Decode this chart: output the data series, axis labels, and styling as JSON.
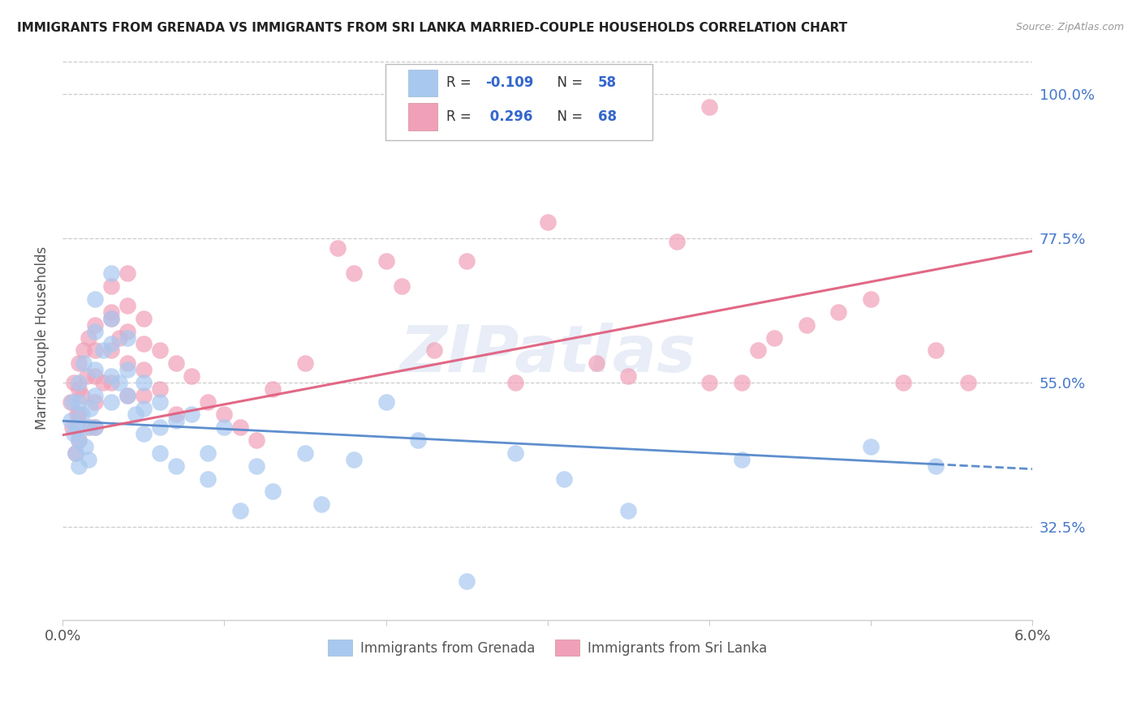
{
  "title": "IMMIGRANTS FROM GRENADA VS IMMIGRANTS FROM SRI LANKA MARRIED-COUPLE HOUSEHOLDS CORRELATION CHART",
  "source": "Source: ZipAtlas.com",
  "ylabel": "Married-couple Households",
  "ytick_labels": [
    "100.0%",
    "77.5%",
    "55.0%",
    "32.5%"
  ],
  "ytick_values": [
    1.0,
    0.775,
    0.55,
    0.325
  ],
  "xmin": 0.0,
  "xmax": 0.06,
  "ymin": 0.18,
  "ymax": 1.06,
  "r_grenada": -0.109,
  "n_grenada": 58,
  "r_srilanka": 0.296,
  "n_srilanka": 68,
  "color_blue": "#a8c8f0",
  "color_pink": "#f0a0b8",
  "trendline_blue_color": "#5588cc",
  "trendline_pink_color": "#e06080",
  "watermark": "ZIPatlas",
  "grenada_x": [
    0.0005,
    0.0006,
    0.0007,
    0.0008,
    0.0009,
    0.001,
    0.001,
    0.001,
    0.001,
    0.0012,
    0.0013,
    0.0014,
    0.0015,
    0.0016,
    0.0017,
    0.002,
    0.002,
    0.002,
    0.002,
    0.002,
    0.0025,
    0.003,
    0.003,
    0.003,
    0.003,
    0.003,
    0.0035,
    0.004,
    0.004,
    0.004,
    0.0045,
    0.005,
    0.005,
    0.005,
    0.006,
    0.006,
    0.006,
    0.007,
    0.007,
    0.008,
    0.009,
    0.009,
    0.01,
    0.011,
    0.012,
    0.013,
    0.015,
    0.016,
    0.018,
    0.02,
    0.022,
    0.025,
    0.028,
    0.031,
    0.035,
    0.042,
    0.05,
    0.054
  ],
  "grenada_y": [
    0.49,
    0.52,
    0.47,
    0.44,
    0.48,
    0.55,
    0.52,
    0.46,
    0.42,
    0.5,
    0.58,
    0.45,
    0.48,
    0.43,
    0.51,
    0.68,
    0.63,
    0.57,
    0.53,
    0.48,
    0.6,
    0.72,
    0.65,
    0.61,
    0.56,
    0.52,
    0.55,
    0.62,
    0.57,
    0.53,
    0.5,
    0.55,
    0.51,
    0.47,
    0.52,
    0.48,
    0.44,
    0.49,
    0.42,
    0.5,
    0.44,
    0.4,
    0.48,
    0.35,
    0.42,
    0.38,
    0.44,
    0.36,
    0.43,
    0.52,
    0.46,
    0.24,
    0.44,
    0.4,
    0.35,
    0.43,
    0.45,
    0.42
  ],
  "srilanka_x": [
    0.0005,
    0.0006,
    0.0007,
    0.0008,
    0.0009,
    0.001,
    0.001,
    0.001,
    0.001,
    0.0012,
    0.0013,
    0.0015,
    0.0016,
    0.0017,
    0.002,
    0.002,
    0.002,
    0.002,
    0.002,
    0.0025,
    0.003,
    0.003,
    0.003,
    0.003,
    0.003,
    0.0035,
    0.004,
    0.004,
    0.004,
    0.004,
    0.004,
    0.005,
    0.005,
    0.005,
    0.005,
    0.006,
    0.006,
    0.007,
    0.007,
    0.008,
    0.009,
    0.01,
    0.011,
    0.012,
    0.013,
    0.015,
    0.017,
    0.018,
    0.02,
    0.021,
    0.023,
    0.025,
    0.028,
    0.03,
    0.033,
    0.035,
    0.038,
    0.04,
    0.04,
    0.042,
    0.043,
    0.044,
    0.046,
    0.048,
    0.05,
    0.052,
    0.054,
    0.056
  ],
  "srilanka_y": [
    0.52,
    0.48,
    0.55,
    0.44,
    0.5,
    0.58,
    0.54,
    0.5,
    0.46,
    0.53,
    0.6,
    0.56,
    0.62,
    0.48,
    0.64,
    0.6,
    0.56,
    0.52,
    0.48,
    0.55,
    0.66,
    0.7,
    0.65,
    0.6,
    0.55,
    0.62,
    0.72,
    0.67,
    0.63,
    0.58,
    0.53,
    0.65,
    0.61,
    0.57,
    0.53,
    0.6,
    0.54,
    0.58,
    0.5,
    0.56,
    0.52,
    0.5,
    0.48,
    0.46,
    0.54,
    0.58,
    0.76,
    0.72,
    0.74,
    0.7,
    0.6,
    0.74,
    0.55,
    0.8,
    0.58,
    0.56,
    0.77,
    0.55,
    0.98,
    0.55,
    0.6,
    0.62,
    0.64,
    0.66,
    0.68,
    0.55,
    0.6,
    0.55
  ],
  "trend_blue_x0": 0.0,
  "trend_blue_y0": 0.49,
  "trend_blue_x1": 0.06,
  "trend_blue_y1": 0.415,
  "trend_pink_x0": 0.0,
  "trend_pink_y0": 0.468,
  "trend_pink_x1": 0.06,
  "trend_pink_y1": 0.755
}
